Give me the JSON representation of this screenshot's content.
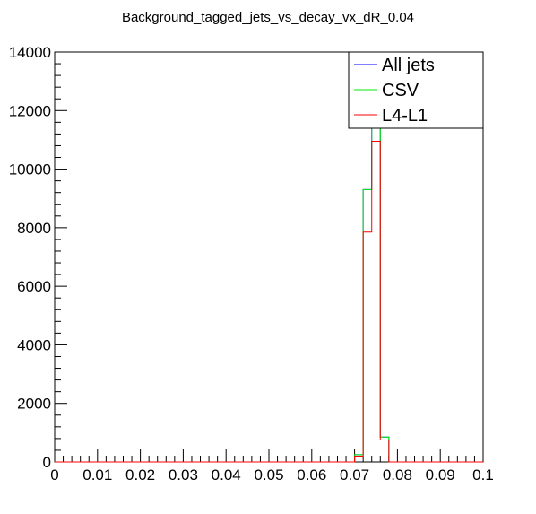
{
  "chart_data": {
    "type": "histogram",
    "title": "Background_tagged_jets_vs_decay_vx_dR_0.04",
    "xlabel": "",
    "ylabel": "",
    "xlim": [
      0,
      0.1
    ],
    "ylim": [
      0,
      14000
    ],
    "x_ticks": [
      "0",
      "0.01",
      "0.02",
      "0.03",
      "0.04",
      "0.05",
      "0.06",
      "0.07",
      "0.08",
      "0.09",
      "0.1"
    ],
    "y_ticks": [
      "0",
      "2000",
      "4000",
      "6000",
      "8000",
      "10000",
      "12000",
      "14000"
    ],
    "bin_width": 0.002,
    "bins_x": [
      0.07,
      0.072,
      0.074,
      0.076
    ],
    "legend_position": "top-right",
    "grid": false,
    "series": [
      {
        "name": "All jets",
        "color": "#0000ff",
        "values": [
          250,
          9300,
          13800,
          850
        ]
      },
      {
        "name": "CSV",
        "color": "#00ee00",
        "values": [
          250,
          9300,
          13800,
          850
        ]
      },
      {
        "name": "L4-L1",
        "color": "#ff0000",
        "values": [
          200,
          7850,
          10950,
          750
        ]
      }
    ]
  }
}
